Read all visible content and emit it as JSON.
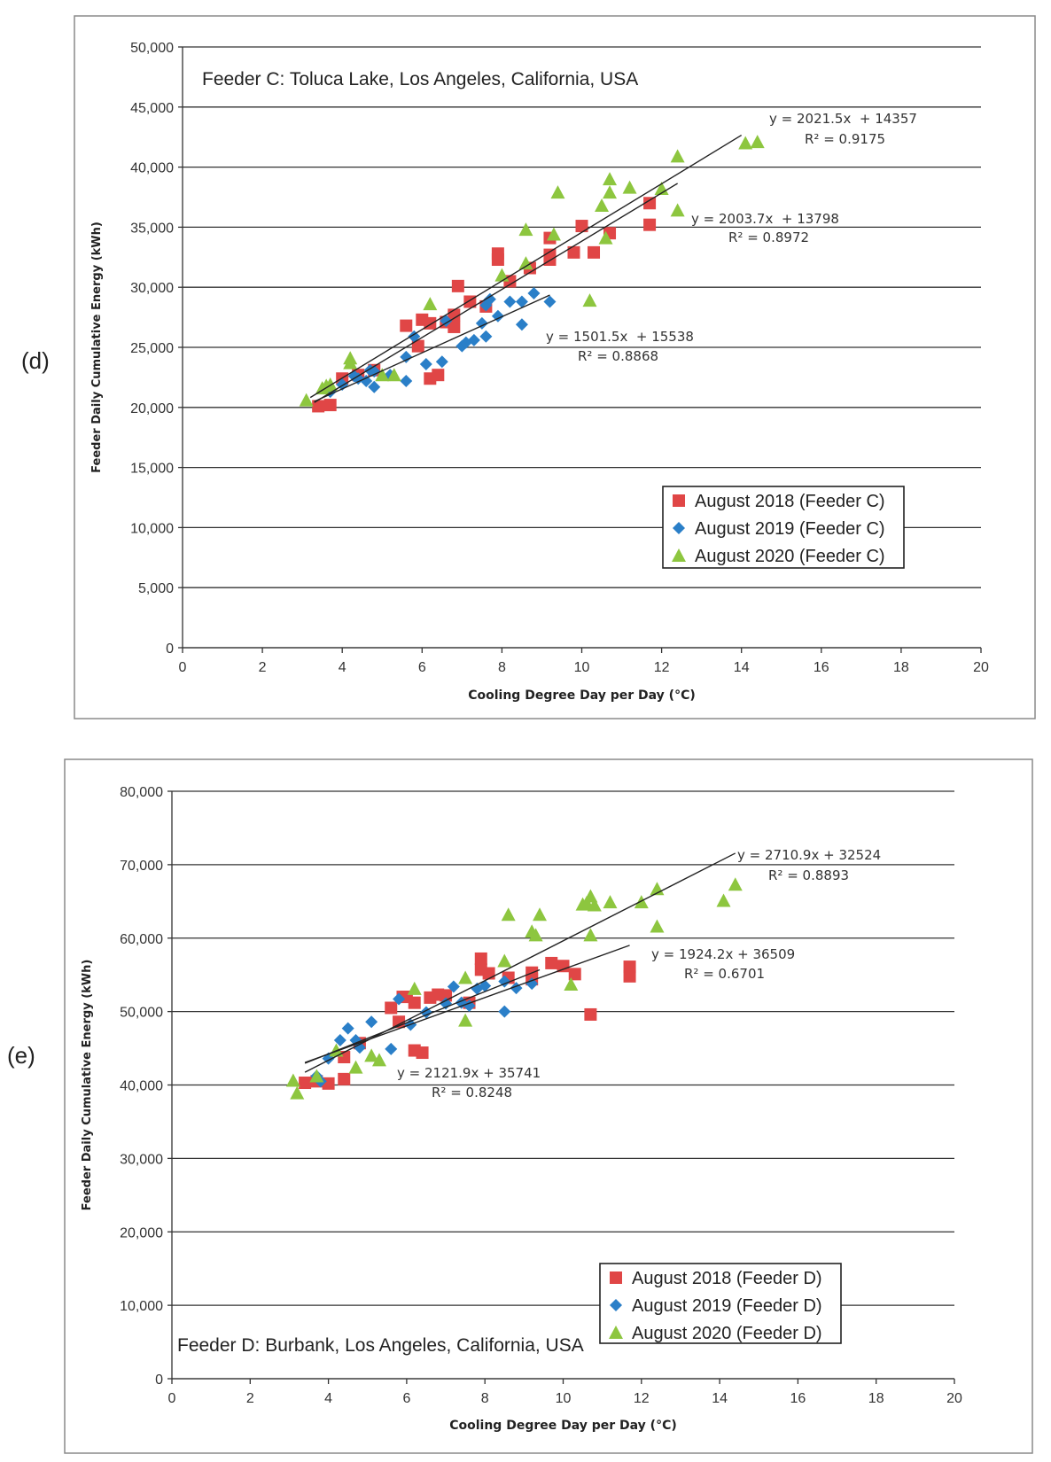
{
  "panels": [
    {
      "label": "(d)",
      "title": "Feeder C: Toluca Lake, Los Angeles, California, USA",
      "xlabel": "Cooling Degree Day per Day (°C)",
      "ylabel": "Feeder Daily Cumulative Energy (kWh)",
      "ylim": [
        0,
        50000
      ],
      "xlim": [
        0,
        20
      ]
    },
    {
      "label": "(e)",
      "title": "Feeder D: Burbank, Los Angeles, California, USA",
      "xlabel": "Cooling Degree Day per Day (°C)",
      "ylabel": "Feeder Daily Cumulative Energy (kWh)",
      "ylim": [
        0,
        80000
      ],
      "xlim": [
        0,
        20
      ]
    }
  ],
  "chart_data": [
    {
      "type": "scatter",
      "title": "Feeder C: Toluca Lake, Los Angeles, California, USA",
      "xlabel": "Cooling Degree Day per Day (°C)",
      "ylabel": "Feeder Daily Cumulative Energy (kWh)",
      "xlim": [
        0,
        20
      ],
      "ylim": [
        0,
        50000
      ],
      "xticks": [
        0,
        2,
        4,
        6,
        8,
        10,
        12,
        14,
        16,
        18,
        20
      ],
      "xtick_labels": [
        "0",
        "2",
        "4",
        "6",
        "8",
        "10",
        "12",
        "14",
        "16",
        "18",
        "20"
      ],
      "yticks": [
        0,
        5000,
        10000,
        15000,
        20000,
        25000,
        30000,
        35000,
        40000,
        45000,
        50000
      ],
      "ytick_labels": [
        "0",
        "5,000",
        "10,000",
        "15,000",
        "20,000",
        "25,000",
        "30,000",
        "35,000",
        "40,000",
        "45,000",
        "50,000"
      ],
      "series": [
        {
          "name": "August 2018 (Feeder C)",
          "color": "#e04646",
          "marker": "square",
          "x": [
            3.4,
            3.7,
            4.0,
            4.4,
            4.8,
            5.6,
            5.9,
            6.0,
            6.2,
            6.2,
            6.4,
            6.6,
            6.8,
            6.8,
            6.9,
            7.2,
            7.6,
            7.9,
            7.9,
            8.2,
            8.7,
            9.2,
            9.2,
            9.2,
            9.8,
            10.0,
            10.3,
            10.7,
            11.7,
            11.7
          ],
          "y": [
            20100,
            20200,
            22400,
            22700,
            23100,
            26800,
            25100,
            27300,
            27000,
            22400,
            22700,
            27100,
            27700,
            26700,
            30100,
            28800,
            28400,
            32300,
            32800,
            30500,
            31600,
            32300,
            32700,
            34100,
            32900,
            35100,
            32900,
            34500,
            35200,
            37000
          ]
        },
        {
          "name": "August 2019 (Feeder C)",
          "color": "#2a7fc8",
          "marker": "diamond",
          "x": [
            3.7,
            4.0,
            4.3,
            4.4,
            4.6,
            4.7,
            4.8,
            4.8,
            5.2,
            5.6,
            5.6,
            5.8,
            6.1,
            6.5,
            6.6,
            7.0,
            7.1,
            7.3,
            7.5,
            7.6,
            7.6,
            7.7,
            7.9,
            8.2,
            8.5,
            8.5,
            8.8,
            9.2
          ],
          "y": [
            21300,
            21900,
            22600,
            22400,
            22200,
            23100,
            21700,
            23000,
            22700,
            22200,
            24200,
            25900,
            23600,
            23800,
            27200,
            25100,
            25400,
            25600,
            27000,
            25900,
            28500,
            29000,
            27600,
            28800,
            28800,
            26900,
            29500,
            28800
          ]
        },
        {
          "name": "August 2020 (Feeder C)",
          "color": "#8dc63f",
          "marker": "triangle",
          "x": [
            3.1,
            3.5,
            3.6,
            3.7,
            4.2,
            4.2,
            5.0,
            5.3,
            6.2,
            8.0,
            8.6,
            8.6,
            9.3,
            9.4,
            10.2,
            10.5,
            10.6,
            10.7,
            10.7,
            11.2,
            12.0,
            12.4,
            12.4,
            14.1,
            14.4
          ],
          "y": [
            20600,
            21600,
            21800,
            21900,
            23700,
            24100,
            22700,
            22700,
            28600,
            31000,
            32000,
            34800,
            34400,
            37900,
            28900,
            36800,
            34100,
            39000,
            37900,
            38300,
            38200,
            40900,
            36400,
            42000,
            42100
          ]
        }
      ],
      "trendlines": [
        {
          "equation": "y = 2021.5x  + 14357",
          "r2": "R² = 0.9175",
          "slope": 2021.5,
          "intercept": 14357,
          "x_range": [
            3.2,
            14.0
          ]
        },
        {
          "equation": "y = 2003.7x  + 13798",
          "r2": "R² = 0.8972",
          "slope": 2003.7,
          "intercept": 13798,
          "x_range": [
            3.3,
            12.4
          ]
        },
        {
          "equation": "y = 1501.5x  + 15538",
          "r2": "R² = 0.8868",
          "slope": 1501.5,
          "intercept": 15538,
          "x_range": [
            3.3,
            9.2
          ]
        }
      ],
      "legend": "bottom-right"
    },
    {
      "type": "scatter",
      "title": "Feeder D: Burbank, Los Angeles, California, USA",
      "xlabel": "Cooling Degree Day per Day (°C)",
      "ylabel": "Feeder Daily Cumulative Energy (kWh)",
      "xlim": [
        0,
        20
      ],
      "ylim": [
        0,
        80000
      ],
      "xticks": [
        0,
        2,
        4,
        6,
        8,
        10,
        12,
        14,
        16,
        18,
        20
      ],
      "xtick_labels": [
        "0",
        "2",
        "4",
        "6",
        "8",
        "10",
        "12",
        "14",
        "16",
        "18",
        "20"
      ],
      "yticks": [
        0,
        10000,
        20000,
        30000,
        40000,
        50000,
        60000,
        70000,
        80000
      ],
      "ytick_labels": [
        "0",
        "10,000",
        "20,000",
        "30,000",
        "40,000",
        "50,000",
        "60,000",
        "70,000",
        "80,000"
      ],
      "series": [
        {
          "name": "August 2018 (Feeder D)",
          "color": "#e04646",
          "marker": "square",
          "x": [
            3.4,
            3.7,
            4.0,
            4.4,
            4.4,
            4.8,
            5.6,
            5.8,
            5.9,
            6.0,
            6.2,
            6.2,
            6.4,
            6.6,
            6.8,
            7.0,
            7.6,
            7.9,
            7.9,
            8.1,
            8.6,
            9.2,
            9.2,
            9.7,
            10.0,
            10.3,
            10.7,
            11.7,
            11.7
          ],
          "y": [
            40300,
            40500,
            40200,
            40800,
            43800,
            45700,
            50500,
            48600,
            52000,
            52000,
            51200,
            44700,
            44400,
            51900,
            52300,
            52200,
            51200,
            57200,
            55700,
            55200,
            54600,
            55300,
            54400,
            56600,
            56200,
            55100,
            49600,
            56100,
            54800
          ]
        },
        {
          "name": "August 2019 (Feeder D)",
          "color": "#2a7fc8",
          "marker": "diamond",
          "x": [
            3.7,
            3.8,
            4.0,
            4.3,
            4.5,
            4.7,
            4.8,
            5.1,
            5.6,
            5.8,
            6.1,
            6.5,
            7.0,
            7.2,
            7.4,
            7.6,
            7.8,
            8.0,
            8.5,
            8.5,
            8.8,
            9.2
          ],
          "y": [
            41200,
            40500,
            43600,
            46100,
            47700,
            46100,
            45100,
            48600,
            44900,
            51700,
            48200,
            49900,
            51100,
            53400,
            51200,
            50800,
            53100,
            53500,
            54100,
            50000,
            53200,
            53800
          ]
        },
        {
          "name": "August 2020 (Feeder D)",
          "color": "#8dc63f",
          "marker": "triangle",
          "x": [
            3.1,
            3.2,
            3.7,
            4.2,
            4.7,
            5.1,
            5.3,
            6.2,
            7.5,
            7.5,
            8.5,
            8.6,
            9.2,
            9.3,
            9.4,
            10.2,
            10.5,
            10.6,
            10.7,
            10.7,
            10.8,
            11.2,
            12.0,
            12.4,
            12.4,
            14.1,
            14.4
          ],
          "y": [
            40600,
            38900,
            41200,
            44700,
            42400,
            44000,
            43400,
            53100,
            54600,
            48800,
            56900,
            63200,
            60900,
            60400,
            63200,
            53700,
            64600,
            64800,
            60400,
            65700,
            64500,
            64900,
            64900,
            66700,
            61600,
            65100,
            67300
          ]
        }
      ],
      "trendlines": [
        {
          "equation": "y = 2710.9x + 32524",
          "r2": "R² = 0.8893",
          "slope": 2710.9,
          "intercept": 32524,
          "x_range": [
            3.4,
            14.4
          ]
        },
        {
          "equation": "y = 1924.2x + 36509",
          "r2": "R² = 0.6701",
          "slope": 1924.2,
          "intercept": 36509,
          "x_range": [
            3.4,
            11.7
          ]
        },
        {
          "equation": "y = 2121.9x + 35741",
          "r2": "R² = 0.8248",
          "slope": 2121.9,
          "intercept": 35741,
          "x_range": [
            3.4,
            9.4
          ]
        }
      ],
      "legend": "bottom-right"
    }
  ]
}
